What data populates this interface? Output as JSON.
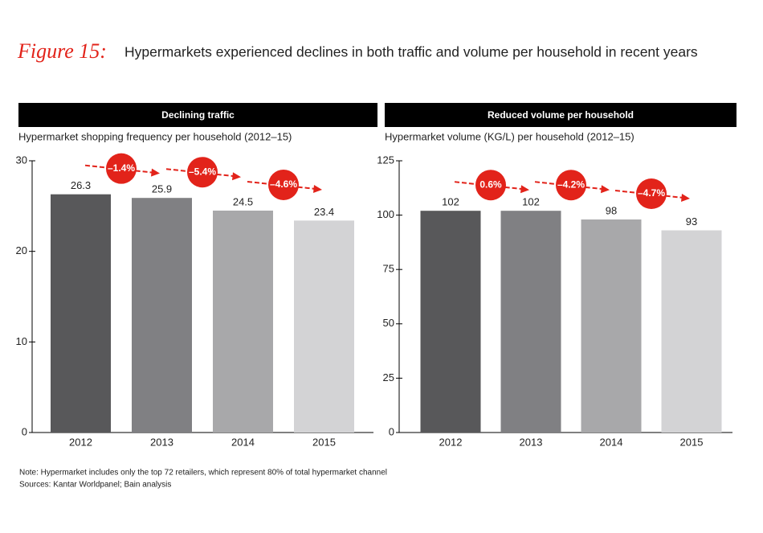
{
  "figure": {
    "label": "Figure 15:",
    "title": "Hypermarkets experienced declines in both traffic and volume per household in recent years"
  },
  "chart_data": [
    {
      "type": "bar",
      "title": "Declining traffic",
      "subtitle": "Hypermarket shopping frequency per household (2012–15)",
      "categories": [
        "2012",
        "2013",
        "2014",
        "2015"
      ],
      "values": [
        26.3,
        25.9,
        24.5,
        23.4
      ],
      "colors": [
        "#58585a",
        "#808083",
        "#a8a8aa",
        "#d3d3d5"
      ],
      "ylim": [
        0,
        30
      ],
      "yticks": [
        0,
        10,
        20,
        30
      ],
      "annotations": [
        "–1.4%",
        "–5.4%",
        "–4.6%"
      ]
    },
    {
      "type": "bar",
      "title": "Reduced volume per household",
      "subtitle": "Hypermarket volume (KG/L) per household (2012–15)",
      "categories": [
        "2012",
        "2013",
        "2014",
        "2015"
      ],
      "values": [
        102,
        102,
        98,
        93
      ],
      "colors": [
        "#58585a",
        "#808083",
        "#a8a8aa",
        "#d3d3d5"
      ],
      "ylim": [
        0,
        125
      ],
      "yticks": [
        0,
        25,
        50,
        75,
        100,
        125
      ],
      "annotations": [
        "0.6%",
        "–4.2%",
        "–4.7%"
      ]
    }
  ],
  "notes": [
    "Note: Hypermarket includes only the top 72 retailers, which represent 80% of total hypermarket channel",
    "Sources: Kantar Worldpanel; Bain analysis"
  ]
}
